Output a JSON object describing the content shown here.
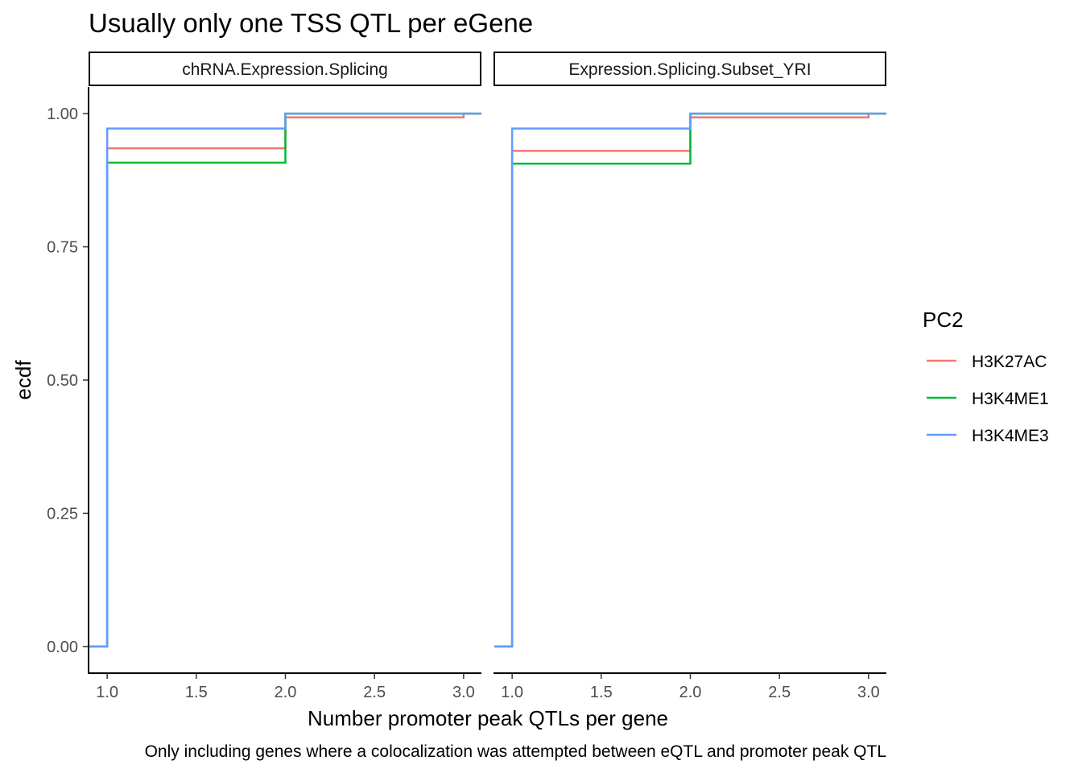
{
  "chart_data": {
    "type": "line",
    "subtype": "step-ecdf",
    "title": "Usually only one TSS QTL per eGene",
    "xlabel": "Number promoter peak QTLs per gene",
    "ylabel": "ecdf",
    "caption": "Only including genes where a colocalization was attempted between eQTL and promoter peak QTL",
    "xlim": [
      0.9,
      3.1
    ],
    "ylim": [
      -0.05,
      1.05
    ],
    "x_ticks": [
      1.0,
      1.5,
      2.0,
      2.5,
      3.0
    ],
    "x_tick_labels": [
      "1.0",
      "1.5",
      "2.0",
      "2.5",
      "3.0"
    ],
    "y_ticks": [
      0.0,
      0.25,
      0.5,
      0.75,
      1.0
    ],
    "y_tick_labels": [
      "0.00",
      "0.25",
      "0.50",
      "0.75",
      "1.00"
    ],
    "grid": false,
    "legend": {
      "title": "PC2",
      "position": "right",
      "entries": [
        "H3K27AC",
        "H3K4ME1",
        "H3K4ME3"
      ]
    },
    "colors": {
      "H3K27AC": "#F8766D",
      "H3K4ME1": "#00BA38",
      "H3K4ME3": "#619CFF"
    },
    "facets": [
      {
        "label": "chRNA.Expression.Splicing",
        "series": [
          {
            "name": "H3K27AC",
            "x": [
              1,
              2,
              3
            ],
            "y": [
              0.935,
              0.993,
              1.0
            ]
          },
          {
            "name": "H3K4ME1",
            "x": [
              1,
              2
            ],
            "y": [
              0.908,
              1.0
            ]
          },
          {
            "name": "H3K4ME3",
            "x": [
              1,
              2
            ],
            "y": [
              0.972,
              1.0
            ]
          }
        ]
      },
      {
        "label": "Expression.Splicing.Subset_YRI",
        "series": [
          {
            "name": "H3K27AC",
            "x": [
              1,
              2,
              3
            ],
            "y": [
              0.93,
              0.993,
              1.0
            ]
          },
          {
            "name": "H3K4ME1",
            "x": [
              1,
              2
            ],
            "y": [
              0.906,
              1.0
            ]
          },
          {
            "name": "H3K4ME3",
            "x": [
              1,
              2
            ],
            "y": [
              0.972,
              1.0
            ]
          }
        ]
      }
    ]
  }
}
